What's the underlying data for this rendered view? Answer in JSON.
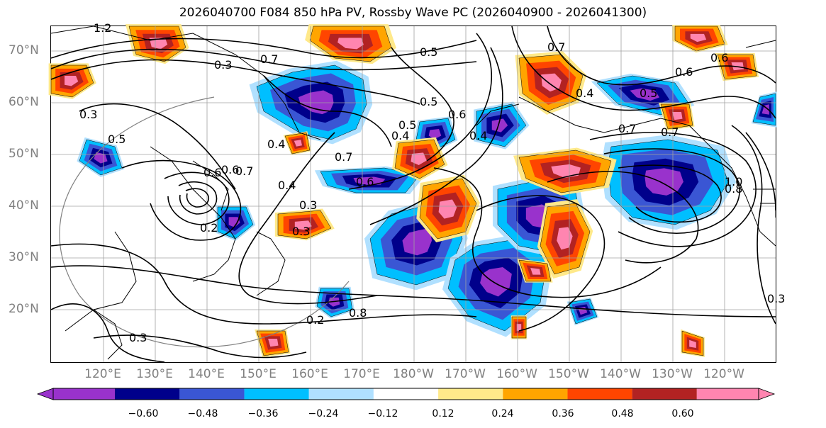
{
  "title": "2026040700 F084 850 hPa PV, Rossby Wave PC (2026040900 - 2026041300)",
  "lat_labels": [
    "70°N",
    "60°N",
    "50°N",
    "40°N",
    "30°N",
    "20°N"
  ],
  "lon_labels": [
    "120°E",
    "130°E",
    "140°E",
    "150°E",
    "160°E",
    "170°E",
    "180°W",
    "170°W",
    "160°W",
    "150°W",
    "140°W",
    "130°W",
    "120°W"
  ],
  "colorbar": {
    "levels": [
      "−0.60",
      "−0.48",
      "−0.36",
      "−0.24",
      "−0.12",
      "0.12",
      "0.24",
      "0.36",
      "0.48",
      "0.60"
    ],
    "colors": [
      "#9932cc",
      "#00008b",
      "#3a56d4",
      "#00bfff",
      "#b0e0ff",
      "#ffffff",
      "#ffe98a",
      "#ffa500",
      "#ff4500",
      "#b22222",
      "#ff85b0"
    ]
  },
  "contour_labels": [
    "1.2",
    "0.3",
    "0.7",
    "0.5",
    "0.4",
    "0.6",
    "0.3",
    "0.5",
    "0.6",
    "0.7",
    "0.5",
    "0.4",
    "0.7",
    "0.6",
    "0.2",
    "0.3",
    "0.3",
    "0.2",
    "0.4",
    "0.7",
    "0.5",
    "0.6",
    "0.4",
    "0.6",
    "0.7",
    "0.5",
    "0.4",
    "1.0",
    "0.8",
    "0.3",
    "0.7",
    "0.8",
    "0.6",
    "0.3"
  ],
  "contour_label_values": [
    1.2,
    0.3,
    0.7,
    0.5,
    0.4,
    0.6,
    0.3,
    0.5,
    0.6,
    0.7,
    0.5,
    0.4,
    0.7,
    0.6,
    0.2,
    0.3,
    0.3,
    0.2,
    0.4,
    0.7,
    0.5,
    0.6,
    0.4,
    0.6,
    0.7,
    0.5,
    0.4,
    1.0,
    0.8,
    0.3,
    0.7,
    0.8,
    0.6,
    0.3
  ],
  "map_features": {
    "coastline_color": "#000000",
    "contour_color": "#000000",
    "grid_color": "#a0a0a0",
    "great_circle_color": "#808080"
  }
}
